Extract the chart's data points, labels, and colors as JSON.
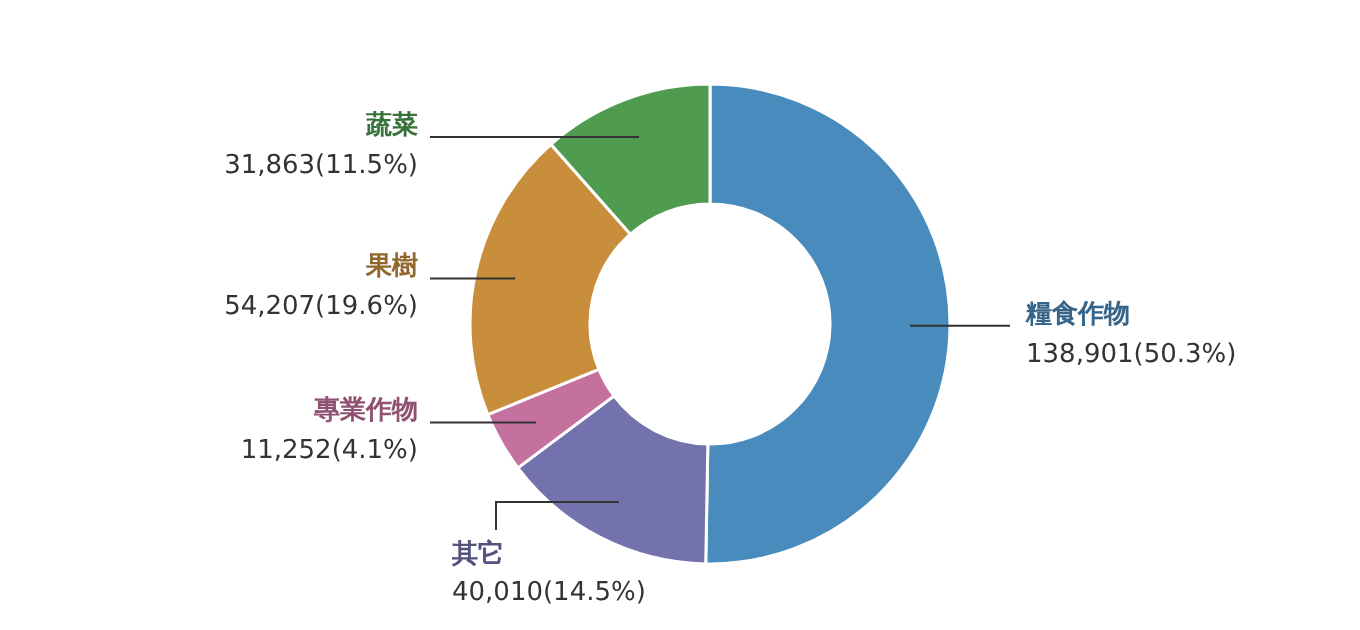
{
  "chart_data": {
    "type": "donut",
    "categories": [
      "糧食作物",
      "其它",
      "專業作物",
      "果樹",
      "蔬菜"
    ],
    "values": [
      138901,
      40010,
      11252,
      54207,
      31863
    ],
    "colors": [
      "#4a8bbd",
      "#7472ad",
      "#c5719f",
      "#c98e3c",
      "#4f9c50"
    ],
    "value_labels": [
      "138,901(50.3%)",
      "40,010(14.5%)",
      "11,252(4.1%)",
      "54,207(19.6%)",
      "31,863(11.5%)"
    ]
  }
}
